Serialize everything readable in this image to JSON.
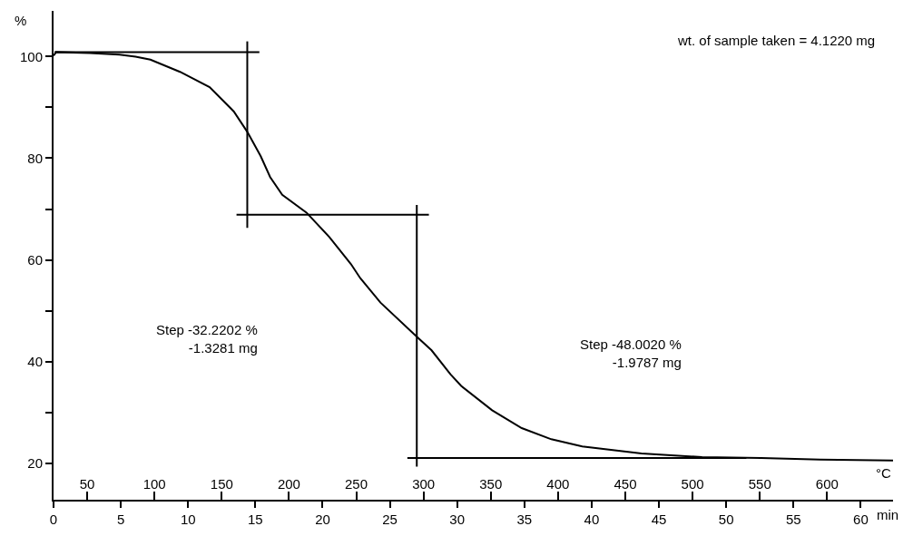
{
  "chart_data": {
    "type": "line",
    "xlabel": "min",
    "x2label": "°C",
    "ylabel": "%",
    "annotations": [
      "wt. of sample taken = 4.1220 mg",
      "Step -32.2202 %\n-1.3281 mg",
      "Step -48.0020 %\n-1.9787 mg"
    ],
    "series": [
      {
        "color": "#000000",
        "x": [
          0,
          0.2,
          2.7,
          4.9,
          6.1,
          7.2,
          9.4,
          11.6,
          13.4,
          14.4,
          15.4,
          16.1,
          17.0,
          18.8,
          20.5,
          22.1,
          22.8,
          24.3,
          27.0,
          28.1,
          29.5,
          30.3,
          32.6,
          34.8,
          37.0,
          39.3,
          43.7,
          48.2,
          52.6,
          57.0,
          62.4
        ],
        "values": [
          100.2,
          100.9,
          100.7,
          100.4,
          100.0,
          99.4,
          97,
          94,
          89.2,
          85.2,
          80.4,
          76.3,
          72.8,
          69.3,
          64.5,
          59.2,
          56.4,
          51.6,
          44.9,
          42.2,
          37.5,
          35.2,
          30.4,
          26.9,
          24.7,
          23.3,
          21.9,
          21.2,
          21.0,
          20.7,
          20.5
        ]
      },
      {
        "color": "#000000",
        "x": [
          0.07,
          15.3,
          null,
          14.4,
          14.4,
          null,
          13.6,
          27.9,
          null,
          27.0,
          27.0,
          null,
          26.3,
          51.5
        ],
        "values": [
          100.9,
          100.9,
          null,
          103,
          66.3,
          null,
          68.9,
          68.9,
          null,
          70.8,
          19.3,
          null,
          21.0,
          21.0
        ]
      }
    ],
    "xlim": [
      0,
      62.4
    ],
    "xticks": [
      0,
      5,
      10,
      15,
      20,
      25,
      30,
      35,
      40,
      45,
      50,
      55,
      60
    ],
    "x2lim": [
      25,
      649
    ],
    "x2ticks": [
      50,
      100,
      150,
      200,
      250,
      300,
      350,
      400,
      450,
      500,
      550,
      600
    ],
    "ylim": [
      12.8,
      109
    ],
    "yticks": [
      20,
      {
        "value": 30,
        "label": null
      },
      40,
      {
        "value": 50,
        "label": null
      },
      60,
      {
        "value": 70,
        "label": null
      },
      80,
      {
        "value": 90,
        "label": null
      },
      100
    ]
  }
}
